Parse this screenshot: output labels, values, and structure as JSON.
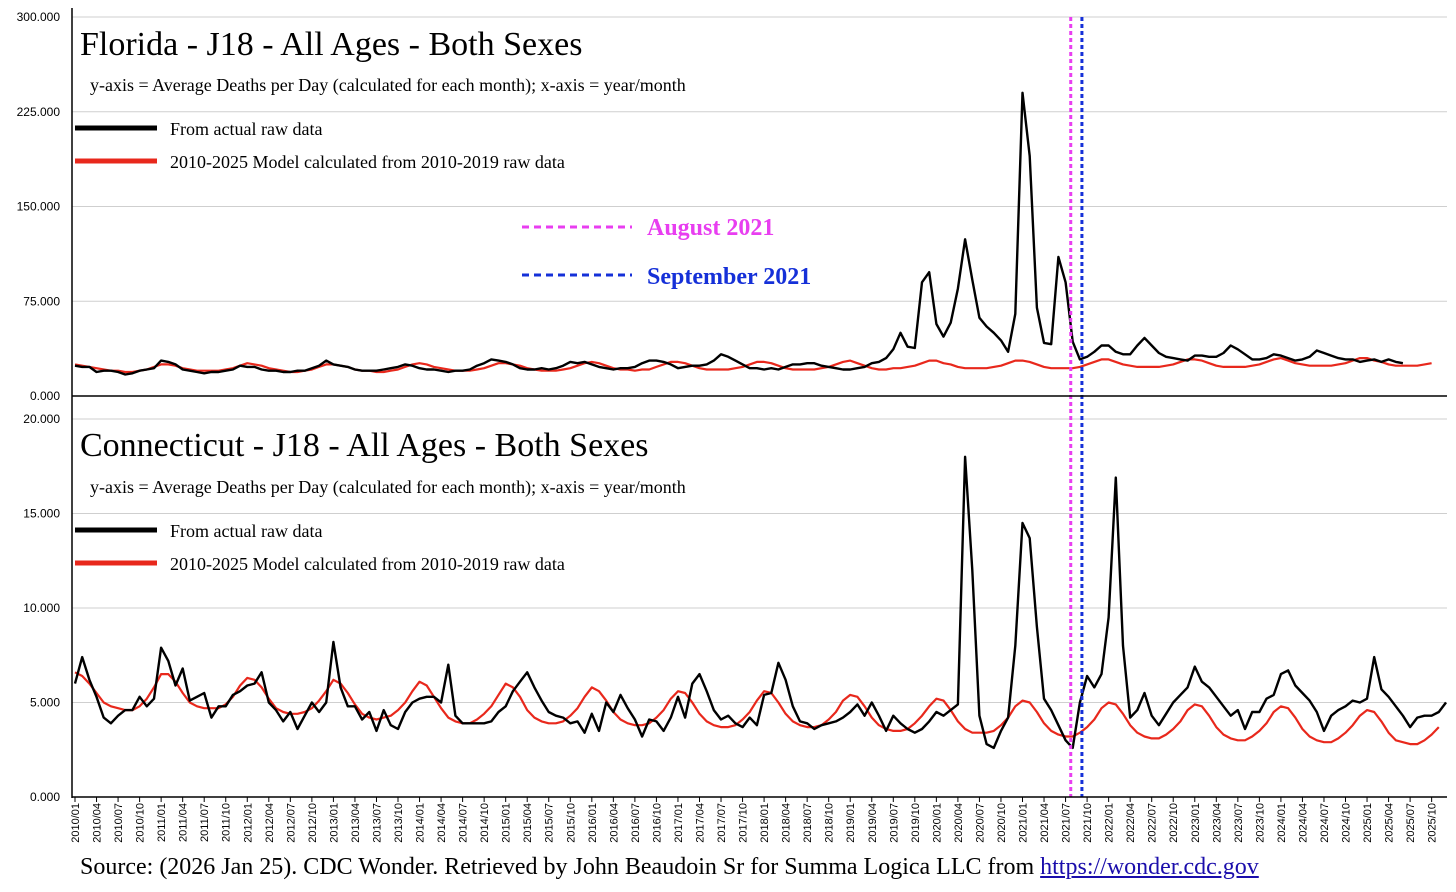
{
  "chart_data": [
    {
      "type": "line",
      "title": "Florida - J18 - All Ages - Both Sexes",
      "subtitle": "y-axis = Average Deaths per Day (calculated for each month); x-axis = year/month",
      "ylim": [
        0,
        300
      ],
      "yticks": [
        "0.000",
        "75.000",
        "150.000",
        "225.000",
        "300.000"
      ],
      "legend": [
        "From actual raw data",
        "2010-2025 Model calculated from 2010-2019 raw data"
      ],
      "markers": [
        {
          "label": "August 2021",
          "color": "#e83ef0",
          "month_index": 139
        },
        {
          "label": "September 2021",
          "color": "#1530d8",
          "month_index": 140
        }
      ],
      "series": [
        {
          "name": "From actual raw data",
          "color": "#000000",
          "values": [
            24,
            23,
            23,
            19,
            20,
            20,
            19,
            17,
            18,
            20,
            21,
            22,
            28,
            27,
            25,
            21,
            20,
            19,
            18,
            19,
            19,
            20,
            21,
            24,
            23,
            23,
            21,
            20,
            20,
            19,
            19,
            20,
            20,
            22,
            24,
            28,
            25,
            24,
            23,
            21,
            20,
            20,
            20,
            21,
            22,
            23,
            25,
            24,
            22,
            21,
            21,
            20,
            19,
            20,
            20,
            21,
            24,
            26,
            29,
            28,
            27,
            25,
            22,
            21,
            21,
            22,
            21,
            22,
            24,
            27,
            26,
            27,
            25,
            23,
            22,
            21,
            22,
            22,
            23,
            26,
            28,
            28,
            27,
            25,
            22,
            23,
            24,
            24,
            25,
            28,
            33,
            31,
            28,
            25,
            22,
            22,
            21,
            22,
            21,
            23,
            25,
            25,
            26,
            26,
            24,
            23,
            22,
            21,
            21,
            22,
            23,
            26,
            27,
            30,
            37,
            50,
            39,
            38,
            90,
            98,
            57,
            47,
            58,
            85,
            124,
            92,
            62,
            55,
            50,
            44,
            35,
            65,
            240,
            190,
            70,
            42,
            41,
            110,
            90,
            43,
            29,
            31,
            35,
            40,
            40,
            35,
            33,
            33,
            40,
            46,
            40,
            34,
            31,
            30,
            29,
            28,
            32,
            32,
            31,
            31,
            34,
            40,
            37,
            33,
            29,
            29,
            30,
            33,
            32,
            30,
            28,
            29,
            31,
            36,
            34,
            32,
            30,
            29,
            29,
            27,
            28,
            29,
            27,
            29,
            27,
            26
          ]
        },
        {
          "name": "2010-2025 Model calculated from 2010-2019 raw data",
          "color": "#e8281c",
          "values": [
            25,
            24,
            23,
            22,
            21,
            20,
            20,
            19,
            19,
            20,
            21,
            23,
            25,
            25,
            24,
            22,
            21,
            20,
            20,
            20,
            20,
            21,
            22,
            24,
            26,
            25,
            24,
            22,
            21,
            20,
            19,
            19,
            20,
            21,
            23,
            25,
            25,
            24,
            23,
            21,
            20,
            20,
            19,
            19,
            20,
            21,
            23,
            25,
            26,
            25,
            23,
            22,
            21,
            20,
            20,
            20,
            21,
            22,
            24,
            26,
            26,
            25,
            24,
            22,
            21,
            20,
            20,
            20,
            21,
            22,
            24,
            26,
            27,
            26,
            24,
            22,
            21,
            21,
            20,
            21,
            21,
            23,
            25,
            27,
            27,
            26,
            24,
            22,
            21,
            21,
            21,
            21,
            22,
            23,
            25,
            27,
            27,
            26,
            24,
            22,
            21,
            21,
            21,
            21,
            22,
            23,
            25,
            27,
            28,
            26,
            24,
            22,
            21,
            21,
            22,
            22,
            23,
            24,
            26,
            28,
            28,
            26,
            25,
            23,
            22,
            22,
            22,
            22,
            23,
            24,
            26,
            28,
            28,
            27,
            25,
            23,
            22,
            22,
            22,
            22,
            23,
            25,
            27,
            29,
            29,
            27,
            25,
            24,
            23,
            23,
            23,
            23,
            24,
            25,
            27,
            29,
            29,
            28,
            26,
            24,
            23,
            23,
            23,
            23,
            24,
            25,
            27,
            29,
            30,
            28,
            26,
            25,
            24,
            24,
            24,
            24,
            25,
            26,
            28,
            30,
            30,
            28,
            27,
            25,
            24,
            24,
            24,
            24,
            25,
            26
          ]
        }
      ]
    },
    {
      "type": "line",
      "title": "Connecticut - J18 - All Ages - Both Sexes",
      "subtitle": "y-axis = Average Deaths per Day (calculated for each month); x-axis = year/month",
      "ylim": [
        0,
        20
      ],
      "yticks": [
        "0.000",
        "5.000",
        "10.000",
        "15.000",
        "20.000"
      ],
      "legend": [
        "From actual raw data",
        "2010-2025 Model calculated from 2010-2019 raw data"
      ],
      "x_tick_labels": [
        "2010/01",
        "2010/04",
        "2010/07",
        "2010/10",
        "2011/01",
        "2011/04",
        "2011/07",
        "2011/10",
        "2012/01",
        "2012/04",
        "2012/07",
        "2012/10",
        "2013/01",
        "2013/04",
        "2013/07",
        "2013/10",
        "2014/01",
        "2014/04",
        "2014/07",
        "2014/10",
        "2015/01",
        "2015/04",
        "2015/07",
        "2015/10",
        "2016/01",
        "2016/04",
        "2016/07",
        "2016/10",
        "2017/01",
        "2017/04",
        "2017/07",
        "2017/10",
        "2018/01",
        "2018/04",
        "2018/07",
        "2018/10",
        "2019/01",
        "2019/04",
        "2019/07",
        "2019/10",
        "2020/01",
        "2020/04",
        "2020/07",
        "2020/10",
        "2021/01",
        "2021/04",
        "2021/07",
        "2021/10",
        "2022/01",
        "2022/04",
        "2022/07",
        "2022/10",
        "2023/01",
        "2023/04",
        "2023/07",
        "2023/10",
        "2024/01",
        "2024/04",
        "2024/07",
        "2024/10",
        "2025/01",
        "2025/04",
        "2025/07",
        "2025/10"
      ],
      "series": [
        {
          "name": "From actual raw data",
          "color": "#000000",
          "values": [
            6.0,
            7.4,
            6.2,
            5.3,
            4.2,
            3.9,
            4.3,
            4.6,
            4.6,
            5.3,
            4.8,
            5.2,
            7.9,
            7.2,
            5.9,
            6.8,
            5.1,
            5.3,
            5.5,
            4.2,
            4.8,
            4.8,
            5.4,
            5.6,
            5.9,
            6.0,
            6.6,
            5.0,
            4.6,
            4.0,
            4.5,
            3.6,
            4.3,
            5.0,
            4.5,
            5.0,
            8.2,
            5.8,
            4.8,
            4.8,
            4.1,
            4.5,
            3.5,
            4.6,
            3.8,
            3.6,
            4.5,
            5.0,
            5.2,
            5.3,
            5.3,
            5.0,
            7.0,
            4.3,
            3.9,
            3.9,
            3.9,
            3.9,
            4.0,
            4.5,
            4.8,
            5.6,
            6.1,
            6.6,
            5.8,
            5.1,
            4.5,
            4.3,
            4.2,
            3.9,
            4.0,
            3.4,
            4.4,
            3.5,
            5.0,
            4.5,
            5.4,
            4.7,
            4.1,
            3.2,
            4.1,
            4.0,
            3.5,
            4.2,
            5.3,
            4.2,
            6.0,
            6.5,
            5.6,
            4.6,
            4.1,
            4.3,
            3.9,
            3.7,
            4.2,
            3.8,
            5.4,
            5.5,
            7.1,
            6.2,
            4.8,
            4.0,
            3.9,
            3.6,
            3.8,
            3.9,
            4.0,
            4.2,
            4.5,
            4.9,
            4.3,
            5.0,
            4.3,
            3.5,
            4.3,
            3.9,
            3.6,
            3.4,
            3.6,
            4.0,
            4.5,
            4.3,
            4.6,
            4.9,
            18.0,
            12.0,
            4.3,
            2.8,
            2.6,
            3.5,
            4.2,
            8.0,
            14.5,
            13.7,
            9.0,
            5.2,
            4.6,
            3.8,
            3.0,
            2.6,
            5.0,
            6.4,
            5.8,
            6.5,
            9.5,
            16.9,
            8.0,
            4.2,
            4.6,
            5.5,
            4.3,
            3.8,
            4.4,
            5.0,
            5.4,
            5.8,
            6.9,
            6.1,
            5.8,
            5.3,
            4.8,
            4.3,
            4.6,
            3.6,
            4.5,
            4.5,
            5.2,
            5.4,
            6.5,
            6.7,
            5.9,
            5.5,
            5.1,
            4.5,
            3.5,
            4.3,
            4.6,
            4.8,
            5.1,
            5.0,
            5.2,
            7.4,
            5.7,
            5.3,
            4.8,
            4.3,
            3.7,
            4.2,
            4.3,
            4.3,
            4.5,
            5.0
          ]
        },
        {
          "name": "2010-2025 Model calculated from 2010-2019 raw data",
          "color": "#e8281c",
          "values": [
            6.6,
            6.4,
            6.0,
            5.5,
            5.0,
            4.8,
            4.7,
            4.6,
            4.6,
            4.8,
            5.2,
            5.8,
            6.5,
            6.5,
            6.1,
            5.5,
            5.0,
            4.8,
            4.7,
            4.7,
            4.7,
            4.9,
            5.3,
            5.9,
            6.3,
            6.2,
            5.8,
            5.2,
            4.7,
            4.5,
            4.4,
            4.4,
            4.5,
            4.7,
            5.1,
            5.6,
            6.2,
            6.0,
            5.5,
            4.9,
            4.4,
            4.2,
            4.1,
            4.2,
            4.3,
            4.6,
            5.0,
            5.6,
            6.1,
            5.9,
            5.3,
            4.7,
            4.2,
            4.0,
            3.9,
            3.9,
            4.1,
            4.4,
            4.8,
            5.4,
            6.0,
            5.8,
            5.3,
            4.6,
            4.2,
            4.0,
            3.9,
            3.9,
            4.0,
            4.3,
            4.7,
            5.3,
            5.8,
            5.6,
            5.1,
            4.5,
            4.1,
            3.9,
            3.8,
            3.8,
            3.9,
            4.2,
            4.6,
            5.2,
            5.6,
            5.5,
            5.0,
            4.4,
            4.0,
            3.8,
            3.7,
            3.7,
            3.8,
            4.1,
            4.5,
            5.1,
            5.6,
            5.5,
            5.0,
            4.4,
            4.0,
            3.8,
            3.7,
            3.7,
            3.8,
            4.1,
            4.5,
            5.1,
            5.4,
            5.3,
            4.8,
            4.2,
            3.8,
            3.6,
            3.5,
            3.5,
            3.6,
            3.9,
            4.3,
            4.8,
            5.2,
            5.1,
            4.6,
            4.0,
            3.6,
            3.4,
            3.4,
            3.4,
            3.5,
            3.8,
            4.2,
            4.8,
            5.1,
            5.0,
            4.5,
            3.9,
            3.5,
            3.3,
            3.2,
            3.2,
            3.4,
            3.7,
            4.1,
            4.7,
            5.0,
            4.9,
            4.4,
            3.8,
            3.4,
            3.2,
            3.1,
            3.1,
            3.3,
            3.6,
            4.0,
            4.6,
            4.9,
            4.8,
            4.3,
            3.7,
            3.3,
            3.1,
            3.0,
            3.0,
            3.2,
            3.5,
            3.9,
            4.5,
            4.8,
            4.7,
            4.2,
            3.6,
            3.2,
            3.0,
            2.9,
            2.9,
            3.1,
            3.4,
            3.8,
            4.3,
            4.6,
            4.5,
            4.0,
            3.4,
            3.0,
            2.9,
            2.8,
            2.8,
            3.0,
            3.3,
            3.7
          ]
        }
      ]
    }
  ],
  "source": {
    "text": "Source: (2026 Jan 25). CDC Wonder. Retrieved by John Beaudoin Sr for Summa Logica LLC from ",
    "link": "https://wonder.cdc.gov"
  }
}
